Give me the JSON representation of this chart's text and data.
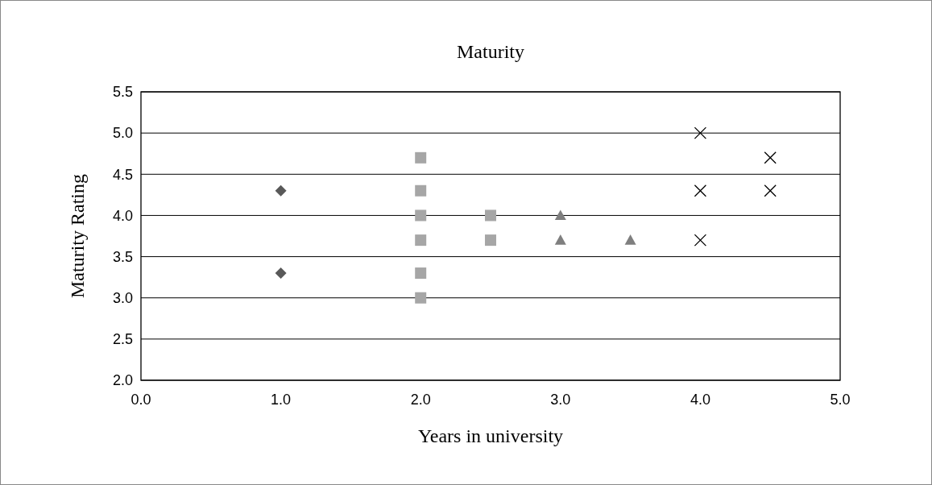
{
  "chart_data": {
    "type": "scatter",
    "title": "Maturity",
    "xlabel": "Years in university",
    "ylabel": "Maturity Rating",
    "xlim": [
      0,
      5
    ],
    "xticks": [
      {
        "value": 0,
        "label": "0.0"
      },
      {
        "value": 1,
        "label": "1.0"
      },
      {
        "value": 2,
        "label": "2.0"
      },
      {
        "value": 3,
        "label": "3.0"
      },
      {
        "value": 4,
        "label": "4.0"
      },
      {
        "value": 5,
        "label": "5.0"
      }
    ],
    "ylim": [
      2,
      5.5
    ],
    "yticks": [
      {
        "value": 2,
        "label": "2.0"
      },
      {
        "value": 2.5,
        "label": "2.5"
      },
      {
        "value": 3,
        "label": "3.0"
      },
      {
        "value": 3.5,
        "label": "3.5"
      },
      {
        "value": 4,
        "label": "4.0"
      },
      {
        "value": 4.5,
        "label": "4.5"
      },
      {
        "value": 5,
        "label": "5.0"
      },
      {
        "value": 5.5,
        "label": "5.5"
      }
    ],
    "grid": "y",
    "series": [
      {
        "color": "#595959",
        "marker": "diamond",
        "x": [
          1,
          1
        ],
        "values": [
          4.3,
          3.3
        ]
      },
      {
        "color": "#a6a6a6",
        "marker": "square",
        "x": [
          2,
          2,
          2,
          2,
          2,
          2,
          2.5,
          2.5
        ],
        "values": [
          4.7,
          4.3,
          4.0,
          3.7,
          3.3,
          3.0,
          4.0,
          3.7
        ]
      },
      {
        "color": "#7f7f7f",
        "marker": "triangle",
        "x": [
          3,
          3,
          3.5
        ],
        "values": [
          4.0,
          3.7,
          3.7
        ]
      },
      {
        "color": "#000000",
        "marker": "cross",
        "x": [
          4,
          4,
          4,
          4.5,
          4.5
        ],
        "values": [
          5.0,
          4.3,
          3.7,
          4.7,
          4.3
        ]
      }
    ]
  }
}
